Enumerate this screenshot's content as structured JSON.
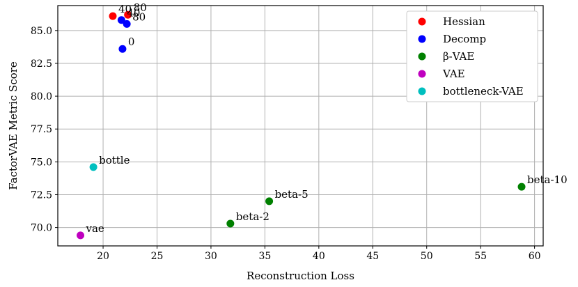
{
  "chart_data": {
    "type": "scatter",
    "xlabel": "Reconstruction Loss",
    "ylabel": "FactorVAE Metric Score",
    "xlim": [
      15.8,
      60.8
    ],
    "ylim": [
      68.6,
      86.9
    ],
    "xticks": [
      20,
      25,
      30,
      35,
      40,
      45,
      50,
      55,
      60
    ],
    "yticks": [
      70.0,
      72.5,
      75.0,
      77.5,
      80.0,
      82.5,
      85.0
    ],
    "grid": true,
    "legend_position": "top-right",
    "series": [
      {
        "name": "Hessian",
        "color": "#ff0000",
        "points": [
          {
            "x": 20.9,
            "y": 86.1,
            "label": "40"
          },
          {
            "x": 22.3,
            "y": 86.2,
            "label": "80"
          }
        ]
      },
      {
        "name": "Decomp",
        "color": "#0000ff",
        "points": [
          {
            "x": 21.7,
            "y": 85.8,
            "label": "40"
          },
          {
            "x": 22.2,
            "y": 85.5,
            "label": "80"
          },
          {
            "x": 21.8,
            "y": 83.6,
            "label": "0"
          }
        ]
      },
      {
        "name": "β-VAE",
        "color": "#008000",
        "points": [
          {
            "x": 31.8,
            "y": 70.3,
            "label": "beta-2"
          },
          {
            "x": 35.4,
            "y": 72.0,
            "label": "beta-5"
          },
          {
            "x": 58.8,
            "y": 73.1,
            "label": "beta-10"
          }
        ]
      },
      {
        "name": "VAE",
        "color": "#bf00bf",
        "points": [
          {
            "x": 17.9,
            "y": 69.4,
            "label": "vae"
          }
        ]
      },
      {
        "name": "bottleneck-VAE",
        "color": "#00bfbf",
        "points": [
          {
            "x": 19.1,
            "y": 74.6,
            "label": "bottle"
          }
        ]
      }
    ]
  }
}
